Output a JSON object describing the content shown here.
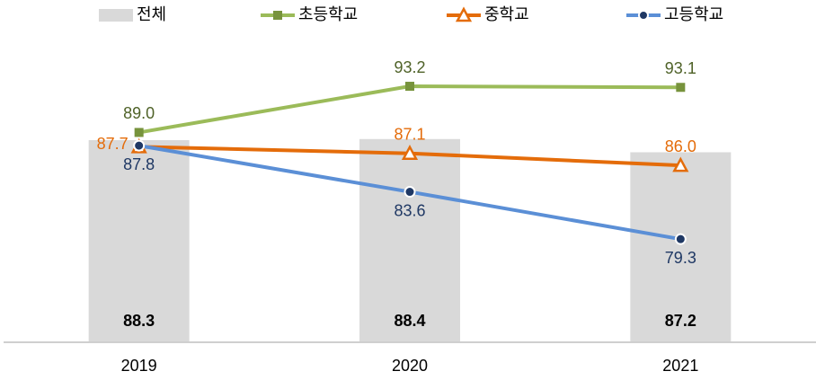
{
  "chart_data": {
    "type": "combo",
    "categories": [
      "2019",
      "2020",
      "2021"
    ],
    "ylim": [
      70,
      95
    ],
    "legend": "top",
    "series": [
      {
        "name": "전체",
        "type": "bar",
        "color": "#d9d9d9",
        "label_color": "#000000",
        "values": [
          88.3,
          88.4,
          87.2
        ]
      },
      {
        "name": "초등학교",
        "type": "line",
        "marker": "square",
        "color": "#9bbb59",
        "marker_color": "#77933c",
        "label_color": "#4f6228",
        "values": [
          89.0,
          93.2,
          93.1
        ],
        "value_labels": [
          "89.0",
          "93.2",
          "93.1"
        ]
      },
      {
        "name": "중학교",
        "type": "line",
        "marker": "triangle",
        "color": "#e46c0a",
        "marker_color": "#e46c0a",
        "label_color": "#e46c0a",
        "values": [
          87.7,
          87.1,
          86.0
        ],
        "value_labels": [
          "87.7",
          "87.1",
          "86.0"
        ]
      },
      {
        "name": "고등학교",
        "type": "line",
        "marker": "circle",
        "color": "#5b8fd6",
        "marker_color": "#1f3864",
        "label_color": "#1f3864",
        "values": [
          87.8,
          83.6,
          79.3
        ],
        "value_labels": [
          "87.8",
          "83.6",
          "79.3"
        ]
      }
    ]
  }
}
